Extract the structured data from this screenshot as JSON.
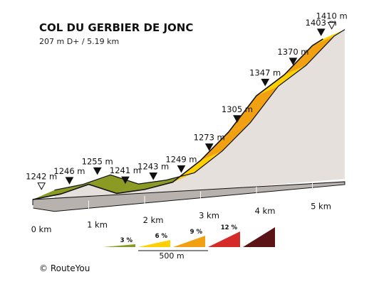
{
  "chart_data": {
    "type": "area",
    "title": "COL DU GERBIER DE JONC",
    "subtitle": "207 m D+ / 5.19 km",
    "unit_elevation": "m",
    "unit_distance": "km",
    "xlim": [
      0,
      5.19
    ],
    "ylim": [
      1242,
      1410
    ],
    "start": {
      "label": "1242 m",
      "km": 0.0,
      "elevation": 1242
    },
    "end": {
      "label": "1410 m",
      "km": 5.19,
      "elevation": 1410
    },
    "markers": [
      {
        "label": "1246 m",
        "km": 0.5,
        "elevation": 1246
      },
      {
        "label": "1255 m",
        "km": 1.0,
        "elevation": 1255
      },
      {
        "label": "1241 m",
        "km": 1.5,
        "elevation": 1241
      },
      {
        "label": "1243 m",
        "km": 2.0,
        "elevation": 1243
      },
      {
        "label": "1249 m",
        "km": 2.5,
        "elevation": 1249
      },
      {
        "label": "1273 m",
        "km": 3.0,
        "elevation": 1273
      },
      {
        "label": "1305 m",
        "km": 3.5,
        "elevation": 1305
      },
      {
        "label": "1347 m",
        "km": 4.0,
        "elevation": 1347
      },
      {
        "label": "1370 m",
        "km": 4.5,
        "elevation": 1370
      },
      {
        "label": "1403 m",
        "km": 5.0,
        "elevation": 1403
      }
    ],
    "segments": [
      {
        "from_km": 0.0,
        "to_km": 0.5,
        "category": "3%"
      },
      {
        "from_km": 0.5,
        "to_km": 1.0,
        "category": "3%"
      },
      {
        "from_km": 1.0,
        "to_km": 1.5,
        "category": "3%"
      },
      {
        "from_km": 1.5,
        "to_km": 2.0,
        "category": "3%"
      },
      {
        "from_km": 2.0,
        "to_km": 2.5,
        "category": "3%"
      },
      {
        "from_km": 2.5,
        "to_km": 3.0,
        "category": "6%"
      },
      {
        "from_km": 3.0,
        "to_km": 3.5,
        "category": "9%"
      },
      {
        "from_km": 3.5,
        "to_km": 4.0,
        "category": "9%"
      },
      {
        "from_km": 4.0,
        "to_km": 4.5,
        "category": "6%"
      },
      {
        "from_km": 4.5,
        "to_km": 5.0,
        "category": "9%"
      },
      {
        "from_km": 5.0,
        "to_km": 5.19,
        "category": "6%"
      }
    ],
    "distance_ticks": [
      {
        "label": "0 km",
        "km": 0
      },
      {
        "label": "1 km",
        "km": 1
      },
      {
        "label": "2 km",
        "km": 2
      },
      {
        "label": "3 km",
        "km": 3
      },
      {
        "label": "4 km",
        "km": 4
      },
      {
        "label": "5 km",
        "km": 5
      }
    ],
    "legend": [
      {
        "label": "3 %",
        "color": "#8a9a22"
      },
      {
        "label": "6 %",
        "color": "#ffd000"
      },
      {
        "label": "9 %",
        "color": "#f0a010"
      },
      {
        "label": "12 %",
        "color": "#d42a28"
      },
      {
        "label": "",
        "color": "#5a1416"
      }
    ],
    "scale_label": "500 m",
    "colors": {
      "3%": "#8a9a22",
      "6%": "#ffd000",
      "9%": "#f0a010",
      "side": "#e6e0dc",
      "outline": "#111111"
    }
  },
  "footer": {
    "copyright": "© RouteYou"
  }
}
